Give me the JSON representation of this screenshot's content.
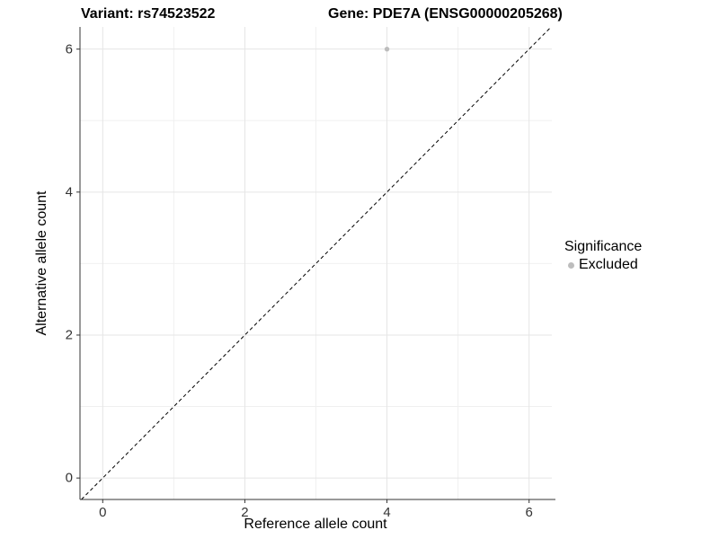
{
  "titles": {
    "left": "Variant: rs74523522",
    "right": "Gene: PDE7A (ENSG00000205268)"
  },
  "axes": {
    "x_title": "Reference allele count",
    "y_title": "Alternative allele count"
  },
  "legend": {
    "title": "Significance",
    "items": [
      {
        "label": "Excluded",
        "color": "#bdbdbd"
      }
    ]
  },
  "colors": {
    "background": "#ffffff",
    "grid_major": "#e5e5e5",
    "grid_minor": "#f0f0f0",
    "axis_line": "#333333",
    "tick_mark": "#333333",
    "tick_text": "#333333",
    "reference_line": "#000000",
    "point_excluded": "#bdbdbd"
  },
  "chart_data": {
    "type": "scatter",
    "title": "Variant: rs74523522   Gene: PDE7A (ENSG00000205268)",
    "xlabel": "Reference allele count",
    "ylabel": "Alternative allele count",
    "xlim": [
      -0.32,
      6.32
    ],
    "ylim": [
      -0.3,
      6.31
    ],
    "x_ticks": [
      0,
      2,
      4,
      6
    ],
    "y_ticks": [
      0,
      2,
      4,
      6
    ],
    "x_minor_ticks": [
      1,
      3,
      5
    ],
    "y_minor_ticks": [
      1,
      3,
      5
    ],
    "grid": true,
    "legend_position": "right",
    "series": [
      {
        "name": "Excluded",
        "color": "#bdbdbd",
        "points": [
          {
            "x": 4,
            "y": 6
          }
        ]
      }
    ],
    "reference_line": {
      "kind": "abline",
      "intercept": 0,
      "slope": 1,
      "style": "dashed"
    }
  }
}
